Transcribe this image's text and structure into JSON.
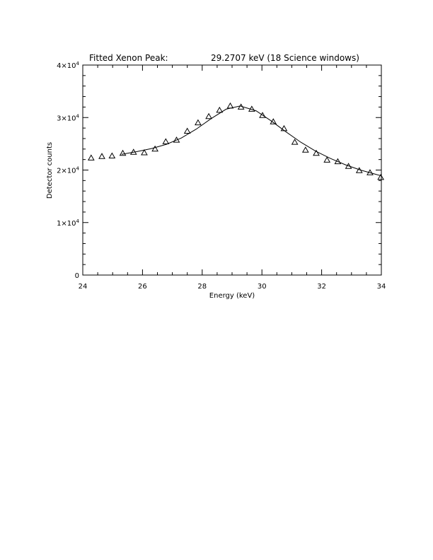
{
  "chart_data": {
    "type": "scatter",
    "title_left": "Fitted Xenon Peak:",
    "title_right": "29.2707 keV (18 Science windows)",
    "xlabel": "Energy (keV)",
    "ylabel": "Detector counts",
    "xlim": [
      24,
      34
    ],
    "ylim": [
      0,
      40000
    ],
    "x_ticks": [
      "24",
      "26",
      "28",
      "30",
      "32",
      "34"
    ],
    "y_ticks": [
      {
        "value": 0,
        "mantissa": "0",
        "exp": ""
      },
      {
        "value": 10000,
        "mantissa": "1×10",
        "exp": "4"
      },
      {
        "value": 20000,
        "mantissa": "2×10",
        "exp": "4"
      },
      {
        "value": 30000,
        "mantissa": "3×10",
        "exp": "4"
      },
      {
        "value": 40000,
        "mantissa": "4×10",
        "exp": "4"
      }
    ],
    "grid": false,
    "series": [
      {
        "marker": "triangle",
        "x": [
          24.28,
          24.64,
          24.98,
          25.34,
          25.7,
          26.06,
          26.42,
          26.78,
          27.14,
          27.5,
          27.86,
          28.22,
          28.58,
          28.94,
          29.3,
          29.66,
          30.02,
          30.38,
          30.74,
          31.1,
          31.46,
          31.82,
          32.18,
          32.54,
          32.9,
          33.26,
          33.62,
          33.98
        ],
        "y": [
          22300,
          22600,
          22700,
          23200,
          23400,
          23300,
          24000,
          25400,
          25700,
          27400,
          29000,
          30200,
          31400,
          32200,
          32000,
          31600,
          30400,
          29200,
          27900,
          25300,
          23800,
          23200,
          21900,
          21600,
          20700,
          19900,
          19500,
          18600
        ]
      },
      {
        "marker": "line",
        "x": [
          25.3,
          25.8,
          26.3,
          26.8,
          27.3,
          27.8,
          28.3,
          28.8,
          29.27,
          29.8,
          30.3,
          30.8,
          31.3,
          31.8,
          32.3,
          32.8,
          33.3,
          33.8,
          34.0
        ],
        "y": [
          23000,
          23500,
          24100,
          24900,
          26100,
          27800,
          29800,
          31600,
          32200,
          31300,
          29400,
          27300,
          25300,
          23600,
          22200,
          21000,
          20000,
          19200,
          18900
        ]
      }
    ]
  }
}
